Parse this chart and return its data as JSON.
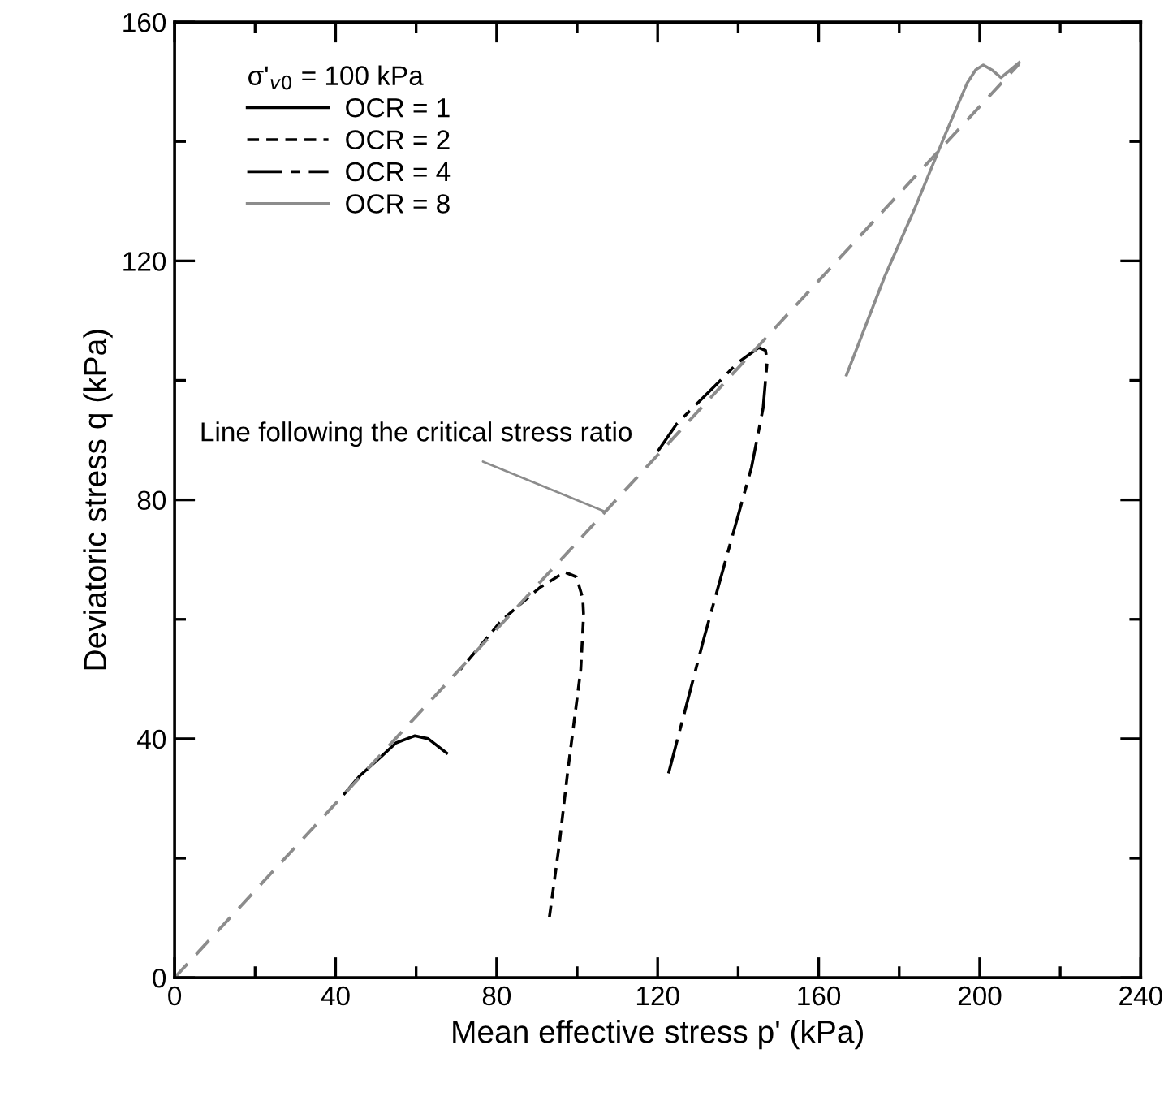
{
  "chart_data": {
    "type": "line",
    "xlabel": "Mean effective stress p' (kPa)",
    "ylabel": "Deviatoric stress q (kPa)",
    "legend_title": "σ'$_{v0}$ = 100 kPa",
    "legend": "top left",
    "xlim": [
      0,
      240
    ],
    "ylim": [
      0,
      160
    ],
    "xticks": [
      0,
      {
        "value": 20,
        "label": null
      },
      40,
      {
        "value": 60,
        "label": null
      },
      80,
      {
        "value": 100,
        "label": null
      },
      120,
      {
        "value": 140,
        "label": null
      },
      160,
      {
        "value": 180,
        "label": null
      },
      200,
      {
        "value": 220,
        "label": null
      },
      240
    ],
    "yticks": [
      0,
      {
        "value": 20,
        "label": null
      },
      40,
      {
        "value": 60,
        "label": null
      },
      80,
      {
        "value": 100,
        "label": null
      },
      120,
      {
        "value": 140,
        "label": null
      },
      160
    ],
    "grid": false,
    "marker": "none",
    "series": [
      {
        "name": "OCR = 1",
        "color": "#000000",
        "line_style": "solid",
        "x": [
          42.2,
          46,
          51.3,
          55,
          59.7,
          63,
          67.6
        ],
        "values": [
          30.8,
          33.8,
          37,
          39.3,
          40.5,
          40,
          37.6
        ]
      },
      {
        "name": "OCR = 2",
        "color": "#000000",
        "line_style": "dashed",
        "x": [
          93.1,
          95.5,
          97.6,
          100.9,
          101.6,
          101.4,
          99.8,
          96.9,
          90.7,
          81.2,
          71
        ],
        "values": [
          10.1,
          22,
          34.2,
          51.6,
          60.7,
          63.5,
          67.1,
          67.9,
          65.3,
          59.8,
          51.6
        ]
      },
      {
        "name": "OCR = 4",
        "color": "#000000",
        "line_style": "dashdot",
        "x": [
          122.7,
          131.6,
          143.3,
          146.2,
          147.2,
          146.8,
          145.1,
          140,
          135.6,
          124.7,
          120
        ],
        "values": [
          34.2,
          57.1,
          85.4,
          95.4,
          103.2,
          105,
          105.5,
          103,
          100,
          92.7,
          88.1
        ]
      },
      {
        "name": "OCR = 8",
        "color": "#8c8c8c",
        "line_style": "solid",
        "x": [
          166.9,
          176.4,
          184,
          191.4,
          196.9,
          199,
          200.9,
          203,
          205.3,
          209.8
        ],
        "values": [
          100.9,
          117.4,
          129,
          141.1,
          149.8,
          152,
          152.8,
          152,
          150.7,
          153.2
        ]
      },
      {
        "color": "#8c8c8c",
        "line_style": "dashed",
        "x": [
          0,
          209.8
        ],
        "values": [
          0,
          153
        ]
      }
    ],
    "annotations": [
      {
        "text": "Line following the critical stress ratio",
        "x": 107,
        "y": 78
      }
    ]
  }
}
